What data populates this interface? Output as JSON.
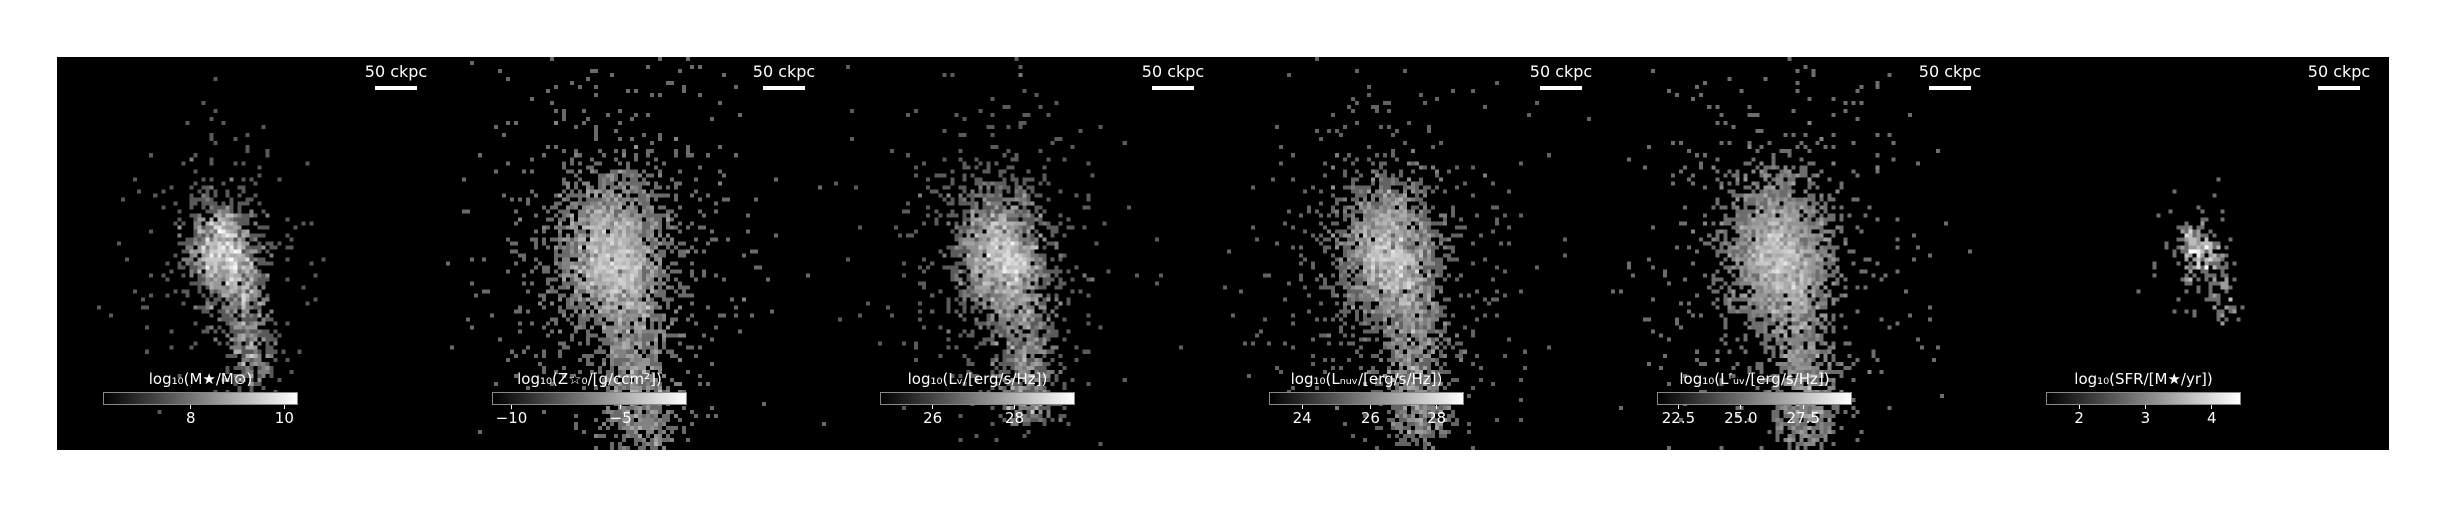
{
  "scalebar_label": "50 ckpc",
  "panels": [
    {
      "id": "stellar-mass",
      "colorbar_label": "log₁₀(M★/M⊙)",
      "ticks": [
        {
          "value": 8,
          "label": "8",
          "frac": 0.45
        },
        {
          "value": 10,
          "label": "10",
          "frac": 0.93
        }
      ]
    },
    {
      "id": "metallicity",
      "colorbar_label": "log₁₀(Z☆₀/[g/ccm²])",
      "ticks": [
        {
          "value": -10,
          "label": "−10",
          "frac": 0.1
        },
        {
          "value": -5,
          "label": "−5",
          "frac": 0.66
        }
      ]
    },
    {
      "id": "v-band",
      "colorbar_label": "log₁₀(Lᵥ/[erg/s/Hz])",
      "ticks": [
        {
          "value": 26,
          "label": "26",
          "frac": 0.27
        },
        {
          "value": 28,
          "label": "28",
          "frac": 0.69
        }
      ]
    },
    {
      "id": "nuv",
      "colorbar_label": "log₁₀(Lₙᵤᵥ/[erg/s/Hz])",
      "ticks": [
        {
          "value": 24,
          "label": "24",
          "frac": 0.17
        },
        {
          "value": 26,
          "label": "26",
          "frac": 0.52
        },
        {
          "value": 28,
          "label": "28",
          "frac": 0.86
        }
      ]
    },
    {
      "id": "fuv",
      "colorbar_label": "log₁₀(Lᶠᵤᵥ/[erg/s/Hz])",
      "ticks": [
        {
          "value": 22.5,
          "label": "22.5",
          "frac": 0.11
        },
        {
          "value": 25.0,
          "label": "25.0",
          "frac": 0.43
        },
        {
          "value": 27.5,
          "label": "27.5",
          "frac": 0.75
        }
      ]
    },
    {
      "id": "sfr",
      "colorbar_label": "log₁₀(SFR/[M★/yr])",
      "ticks": [
        {
          "value": 2,
          "label": "2",
          "frac": 0.17
        },
        {
          "value": 3,
          "label": "3",
          "frac": 0.51
        },
        {
          "value": 4,
          "label": "4",
          "frac": 0.85
        }
      ]
    }
  ]
}
